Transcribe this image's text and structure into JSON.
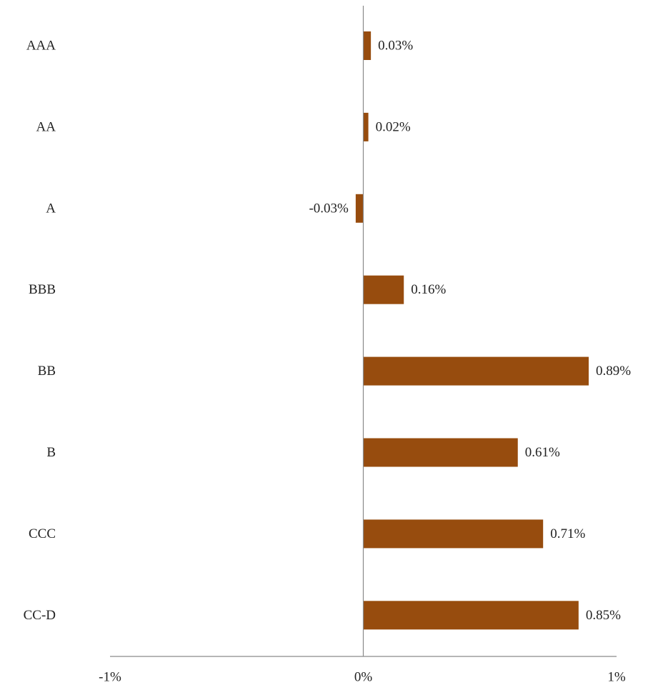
{
  "chart_data": {
    "type": "bar",
    "orientation": "horizontal",
    "categories": [
      "AAA",
      "AA",
      "A",
      "BBB",
      "BB",
      "B",
      "CCC",
      "CC-D"
    ],
    "values": [
      0.03,
      0.02,
      -0.03,
      0.16,
      0.89,
      0.61,
      0.71,
      0.85
    ],
    "value_labels": [
      "0.03%",
      "0.02%",
      "-0.03%",
      "0.16%",
      "0.89%",
      "0.61%",
      "0.71%",
      "0.85%"
    ],
    "xlim": [
      -1,
      1
    ],
    "xticks": [
      -1,
      0,
      1
    ],
    "xtick_labels": [
      "-1%",
      "0%",
      "1%"
    ],
    "grid": false,
    "legend": "none",
    "bar_color": "#974c0e"
  }
}
